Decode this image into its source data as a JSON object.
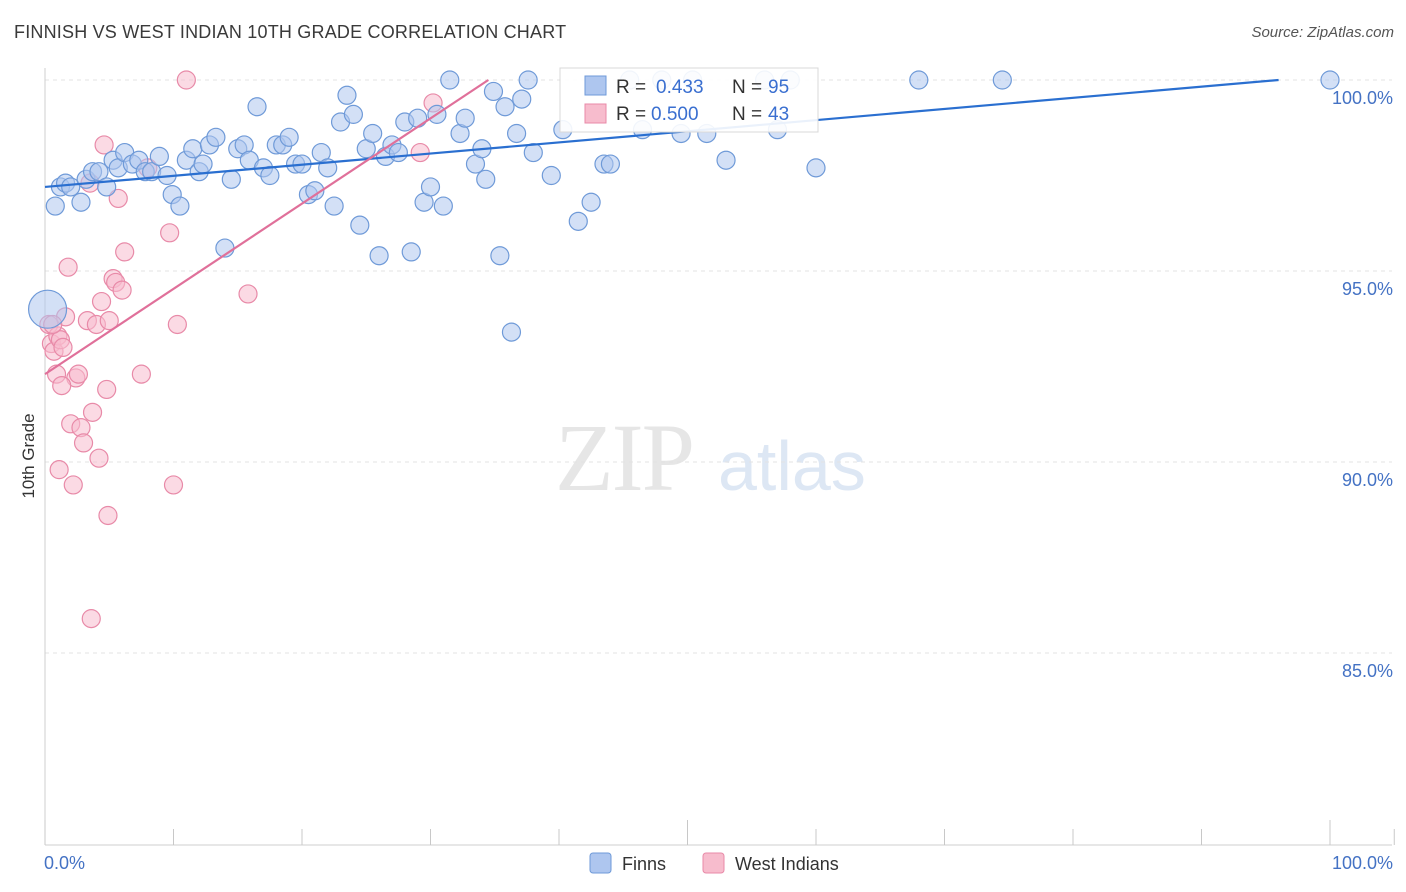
{
  "header": {
    "title": "FINNISH VS WEST INDIAN 10TH GRADE CORRELATION CHART",
    "source": "Source: ZipAtlas.com"
  },
  "watermark": {
    "zip": "ZIP",
    "atlas": "atlas"
  },
  "legend": {
    "rows": [
      {
        "r_label": "R =",
        "r_value": "0.433",
        "n_label": "N =",
        "n_value": "95"
      },
      {
        "r_label": "R =",
        "r_value": "0.500",
        "n_label": "N =",
        "n_value": "43"
      }
    ]
  },
  "bottom_legend": {
    "finns": "Finns",
    "west_indians": "West Indians"
  },
  "colors": {
    "finns_fill": "#aec6ef",
    "finns_stroke": "#6f9ad8",
    "finns_line": "#2a6fd0",
    "wi_fill": "#f7bccd",
    "wi_stroke": "#e88aa8",
    "wi_line": "#e0709a",
    "tick_label": "#4472c4",
    "grid": "#e3e3e3"
  },
  "chart_data": {
    "type": "scatter",
    "title": "FINNISH VS WEST INDIAN 10TH GRADE CORRELATION CHART",
    "xlabel": "",
    "ylabel": "10th Grade",
    "xlim": [
      0,
      100
    ],
    "ylim": [
      80.5,
      100.8
    ],
    "x_tick_labels": [
      "0.0%",
      "100.0%"
    ],
    "y_ticks": [
      85,
      90,
      95,
      100
    ],
    "y_tick_labels": [
      "85.0%",
      "90.0%",
      "95.0%",
      "100.0%"
    ],
    "grid": true,
    "legend_position": "top-center",
    "series": [
      {
        "name": "Finns",
        "r": 0.433,
        "n": 95,
        "trend": {
          "x": [
            0,
            96
          ],
          "y": [
            97.2,
            100.0
          ]
        },
        "points": [
          [
            0.8,
            96.7
          ],
          [
            1.2,
            97.2
          ],
          [
            1.6,
            97.3
          ],
          [
            2.0,
            97.2
          ],
          [
            2.8,
            96.8
          ],
          [
            3.2,
            97.4
          ],
          [
            3.7,
            97.6
          ],
          [
            4.2,
            97.6
          ],
          [
            4.8,
            97.2
          ],
          [
            5.3,
            97.9
          ],
          [
            5.7,
            97.7
          ],
          [
            6.2,
            98.1
          ],
          [
            6.8,
            97.8
          ],
          [
            7.3,
            97.9
          ],
          [
            7.8,
            97.6
          ],
          [
            8.3,
            97.6
          ],
          [
            8.9,
            98.0
          ],
          [
            9.5,
            97.5
          ],
          [
            9.9,
            97.0
          ],
          [
            10.5,
            96.7
          ],
          [
            11.0,
            97.9
          ],
          [
            11.5,
            98.2
          ],
          [
            12.0,
            97.6
          ],
          [
            12.3,
            97.8
          ],
          [
            12.8,
            98.3
          ],
          [
            13.3,
            98.5
          ],
          [
            14.0,
            95.6
          ],
          [
            14.5,
            97.4
          ],
          [
            15.0,
            98.2
          ],
          [
            15.5,
            98.3
          ],
          [
            15.9,
            97.9
          ],
          [
            16.5,
            99.3
          ],
          [
            17.0,
            97.7
          ],
          [
            17.5,
            97.5
          ],
          [
            18.0,
            98.3
          ],
          [
            18.5,
            98.3
          ],
          [
            19.0,
            98.5
          ],
          [
            19.5,
            97.8
          ],
          [
            20.0,
            97.8
          ],
          [
            20.5,
            97.0
          ],
          [
            21.0,
            97.1
          ],
          [
            21.5,
            98.1
          ],
          [
            22.0,
            97.7
          ],
          [
            22.5,
            96.7
          ],
          [
            23.0,
            98.9
          ],
          [
            23.5,
            99.6
          ],
          [
            24.0,
            99.1
          ],
          [
            24.5,
            96.2
          ],
          [
            25.0,
            98.2
          ],
          [
            25.5,
            98.6
          ],
          [
            26.0,
            95.4
          ],
          [
            26.5,
            98.0
          ],
          [
            27.0,
            98.3
          ],
          [
            27.5,
            98.1
          ],
          [
            28.0,
            98.9
          ],
          [
            28.5,
            95.5
          ],
          [
            29.0,
            99.0
          ],
          [
            29.5,
            96.8
          ],
          [
            30.0,
            97.2
          ],
          [
            30.5,
            99.1
          ],
          [
            31.0,
            96.7
          ],
          [
            31.5,
            100.0
          ],
          [
            32.3,
            98.6
          ],
          [
            32.7,
            99.0
          ],
          [
            33.5,
            97.8
          ],
          [
            34.0,
            98.2
          ],
          [
            34.3,
            97.4
          ],
          [
            34.9,
            99.7
          ],
          [
            35.4,
            95.4
          ],
          [
            35.8,
            99.3
          ],
          [
            36.3,
            93.4
          ],
          [
            36.7,
            98.6
          ],
          [
            37.1,
            99.5
          ],
          [
            37.6,
            100.0
          ],
          [
            38.0,
            98.1
          ],
          [
            39.4,
            97.5
          ],
          [
            40.3,
            98.7
          ],
          [
            41.5,
            96.3
          ],
          [
            42.5,
            96.8
          ],
          [
            43.5,
            97.8
          ],
          [
            44.0,
            97.8
          ],
          [
            45.5,
            100.0
          ],
          [
            46.5,
            98.7
          ],
          [
            48.0,
            100.0
          ],
          [
            49.5,
            98.6
          ],
          [
            50.4,
            100.0
          ],
          [
            51.5,
            98.6
          ],
          [
            53.0,
            97.9
          ],
          [
            56.0,
            100.0
          ],
          [
            57.0,
            98.7
          ],
          [
            58.0,
            100.0
          ],
          [
            60.0,
            97.7
          ],
          [
            68.0,
            100.0
          ],
          [
            74.5,
            100.0
          ],
          [
            100.0,
            100.0
          ]
        ]
      },
      {
        "name": "West Indians",
        "r": 0.5,
        "n": 43,
        "trend": {
          "x": [
            0,
            34.5
          ],
          "y": [
            92.3,
            100.0
          ]
        },
        "points": [
          [
            0.3,
            93.6
          ],
          [
            0.5,
            93.1
          ],
          [
            0.7,
            92.9
          ],
          [
            0.9,
            92.3
          ],
          [
            1.0,
            93.3
          ],
          [
            1.2,
            93.2
          ],
          [
            1.4,
            93.0
          ],
          [
            1.6,
            93.8
          ],
          [
            1.8,
            95.1
          ],
          [
            2.0,
            91.0
          ],
          [
            2.2,
            89.4
          ],
          [
            2.4,
            92.2
          ],
          [
            2.6,
            92.3
          ],
          [
            2.8,
            90.9
          ],
          [
            3.0,
            90.5
          ],
          [
            3.3,
            93.7
          ],
          [
            3.5,
            97.3
          ],
          [
            3.7,
            91.3
          ],
          [
            4.0,
            93.6
          ],
          [
            4.2,
            90.1
          ],
          [
            4.4,
            94.2
          ],
          [
            4.6,
            98.3
          ],
          [
            4.8,
            91.9
          ],
          [
            4.9,
            88.6
          ],
          [
            5.0,
            93.7
          ],
          [
            5.3,
            94.8
          ],
          [
            5.5,
            94.7
          ],
          [
            5.7,
            96.9
          ],
          [
            6.0,
            94.5
          ],
          [
            6.2,
            95.5
          ],
          [
            7.5,
            92.3
          ],
          [
            8.0,
            97.7
          ],
          [
            9.7,
            96.0
          ],
          [
            10.0,
            89.4
          ],
          [
            10.3,
            93.6
          ],
          [
            11.0,
            100.0
          ],
          [
            15.8,
            94.4
          ],
          [
            29.2,
            98.1
          ],
          [
            30.2,
            99.4
          ],
          [
            1.1,
            89.8
          ],
          [
            3.6,
            85.9
          ],
          [
            0.6,
            93.6
          ],
          [
            1.3,
            92.0
          ]
        ]
      }
    ]
  }
}
